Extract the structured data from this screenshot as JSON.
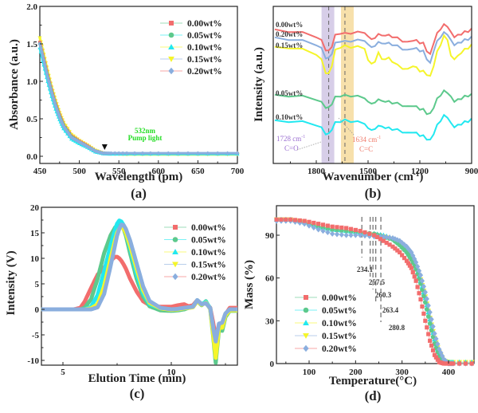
{
  "figure": {
    "panels": [
      "(a)",
      "(b)",
      "(c)",
      "(d)"
    ]
  },
  "series_names": [
    "0.00wt%",
    "0.05wt%",
    "0.10wt%",
    "0.15wt%",
    "0.20wt%"
  ],
  "series_colors": [
    "#f26d6d",
    "#5dc98c",
    "#22e8f0",
    "#f5f52a",
    "#8aaede"
  ],
  "series_markers": [
    "square",
    "circle",
    "triangle-up",
    "triangle-down",
    "diamond"
  ],
  "chart_data": [
    {
      "panel": "(a)",
      "type": "line",
      "xlabel": "Wavelength (pm)",
      "ylabel": "Absorbance (a.u.)",
      "xlim": [
        450,
        700
      ],
      "ylim": [
        0,
        2.0
      ],
      "xticks": [
        450,
        500,
        550,
        600,
        650,
        700
      ],
      "yticks": [
        0.0,
        0.5,
        1.0,
        1.5,
        2.0
      ],
      "ytick_labels": [
        "0.0",
        "0.5",
        "1.0",
        "1.5",
        "2.0"
      ],
      "legend": "top-right",
      "annotation": {
        "text_line1": "532nm",
        "text_line2": "Pump light",
        "x": 532,
        "y": 0.05,
        "color": "#22dd22"
      },
      "x": [
        450,
        455,
        460,
        465,
        470,
        475,
        480,
        490,
        500,
        510,
        520,
        530,
        540,
        560,
        600,
        650,
        700
      ],
      "series": [
        {
          "name": "0.00wt%",
          "values": [
            1.52,
            1.3,
            1.08,
            0.88,
            0.7,
            0.55,
            0.42,
            0.27,
            0.2,
            0.14,
            0.07,
            0.04,
            0.035,
            0.035,
            0.035,
            0.035,
            0.035
          ]
        },
        {
          "name": "0.05wt%",
          "values": [
            1.5,
            1.28,
            1.06,
            0.86,
            0.68,
            0.53,
            0.41,
            0.26,
            0.19,
            0.13,
            0.07,
            0.04,
            0.035,
            0.035,
            0.035,
            0.035,
            0.035
          ]
        },
        {
          "name": "0.10wt%",
          "values": [
            1.45,
            1.22,
            1.0,
            0.8,
            0.63,
            0.49,
            0.37,
            0.23,
            0.17,
            0.12,
            0.06,
            0.035,
            0.03,
            0.03,
            0.03,
            0.03,
            0.03
          ]
        },
        {
          "name": "0.15wt%",
          "values": [
            1.58,
            1.36,
            1.13,
            0.92,
            0.74,
            0.58,
            0.45,
            0.29,
            0.21,
            0.15,
            0.08,
            0.04,
            0.03,
            0.025,
            0.025,
            0.025,
            0.025
          ]
        },
        {
          "name": "0.20wt%",
          "values": [
            1.5,
            1.28,
            1.05,
            0.85,
            0.67,
            0.52,
            0.4,
            0.25,
            0.19,
            0.13,
            0.07,
            0.04,
            0.04,
            0.04,
            0.04,
            0.04,
            0.04
          ]
        }
      ]
    },
    {
      "panel": "(b)",
      "type": "line",
      "xlabel": "Wavenumber (cm-1)",
      "xlabel_main": "Wavenumber (cm",
      "xlabel_sup": "-1",
      "xlabel_end": ")",
      "ylabel": "Intensity (a.u.)",
      "xlim": [
        2040,
        900
      ],
      "xticks": [
        1800,
        1500,
        1200,
        900
      ],
      "yticks": [],
      "legend": "inline labels",
      "bands": [
        {
          "center": 1728,
          "label": "1728 cm-1",
          "sub": "C=O",
          "color": "#b7a6d6"
        },
        {
          "center": 1634,
          "label": "1634 cm-1",
          "sub": "C=C",
          "color": "#f0c766"
        }
      ],
      "band_labels": {
        "co_num": "1728 cm",
        "co_sup": "-1",
        "co_sub": "C=O",
        "cc_num": "1634 cm",
        "cc_sup": "-1",
        "cc_sub": "C=C"
      },
      "x": [
        2040,
        1960,
        1880,
        1800,
        1770,
        1745,
        1728,
        1710,
        1690,
        1660,
        1634,
        1600,
        1560,
        1520,
        1500,
        1480,
        1460,
        1440,
        1420,
        1400,
        1380,
        1360,
        1330,
        1300,
        1270,
        1240,
        1220,
        1200,
        1180,
        1160,
        1140,
        1120,
        1100,
        1080,
        1060,
        1040,
        1020,
        1000,
        980,
        960,
        940,
        920,
        900
      ],
      "series": [
        {
          "name": "0.00wt%",
          "offset": 100,
          "values": [
            0,
            -2,
            -6,
            -14,
            -24,
            -44,
            -48,
            -36,
            -12,
            -6,
            -8,
            -6,
            -5,
            -4,
            -16,
            -18,
            -20,
            -6,
            -14,
            -10,
            -12,
            -14,
            -18,
            -24,
            -28,
            -22,
            -24,
            -28,
            -30,
            -46,
            -56,
            -28,
            -8,
            4,
            12,
            10,
            -6,
            -14,
            -12,
            -8,
            -4,
            -2,
            2
          ]
        },
        {
          "name": "0.20wt%",
          "offset": 90,
          "values": [
            0,
            -2,
            -6,
            -14,
            -24,
            -44,
            -46,
            -34,
            -12,
            -6,
            -8,
            -6,
            -5,
            -4,
            -16,
            -18,
            -20,
            -6,
            -14,
            -10,
            -12,
            -14,
            -18,
            -24,
            -28,
            -22,
            -24,
            -28,
            -30,
            -46,
            -58,
            -28,
            -8,
            4,
            12,
            10,
            -6,
            -14,
            -12,
            -8,
            -4,
            -2,
            2
          ]
        },
        {
          "name": "0.15wt%",
          "offset": 80,
          "values": [
            0,
            1,
            -4,
            -14,
            -28,
            -56,
            -60,
            -40,
            -6,
            2,
            4,
            2,
            2,
            0,
            -30,
            -34,
            -34,
            -8,
            -28,
            -24,
            -24,
            -30,
            -40,
            -46,
            -50,
            -40,
            -46,
            -52,
            -54,
            -60,
            -66,
            -40,
            -10,
            8,
            26,
            20,
            -20,
            -24,
            -20,
            -10,
            -4,
            0,
            6
          ]
        },
        {
          "name": "0.05wt%",
          "offset": 30,
          "values": [
            0,
            0,
            -2,
            -8,
            -16,
            -26,
            -28,
            -18,
            -4,
            0,
            0,
            0,
            -2,
            -4,
            -16,
            -16,
            -18,
            -6,
            -14,
            -12,
            -14,
            -16,
            -18,
            -22,
            -26,
            -22,
            -26,
            -30,
            -32,
            -40,
            -42,
            -26,
            -8,
            2,
            10,
            8,
            -4,
            -12,
            -10,
            -6,
            -2,
            0,
            2
          ]
        },
        {
          "name": "0.10wt%",
          "offset": 0,
          "values": [
            0,
            0,
            -2,
            -8,
            -16,
            -28,
            -30,
            -18,
            -4,
            0,
            2,
            0,
            -2,
            -4,
            -18,
            -18,
            -20,
            -8,
            -14,
            -14,
            -16,
            -18,
            -20,
            -24,
            -28,
            -24,
            -28,
            -32,
            -34,
            -40,
            -44,
            -28,
            -10,
            2,
            12,
            10,
            -6,
            -12,
            -10,
            -6,
            -2,
            0,
            4
          ]
        }
      ]
    },
    {
      "panel": "(c)",
      "type": "line",
      "xlabel": "Elution Time (min)",
      "ylabel": "Intensity (V)",
      "xlim": [
        4.0,
        13.05
      ],
      "ylim": [
        -11,
        20
      ],
      "xticks": [
        5,
        10
      ],
      "yticks": [
        -10,
        -5,
        0,
        5,
        10,
        15,
        20
      ],
      "legend": "top-right",
      "x": [
        4.0,
        5.0,
        5.5,
        5.8,
        6.0,
        6.3,
        6.6,
        6.9,
        7.2,
        7.4,
        7.5,
        7.6,
        7.7,
        7.8,
        7.9,
        8.1,
        8.4,
        8.7,
        9.0,
        9.5,
        10.0,
        10.3,
        10.6,
        10.8,
        11.0,
        11.2,
        11.4,
        11.6,
        11.8,
        11.95,
        12.05,
        12.2,
        12.35,
        12.5,
        12.7,
        13.05
      ],
      "series": [
        {
          "name": "0.00wt%",
          "values": [
            0,
            0,
            0,
            0.3,
            1.5,
            4.2,
            6.8,
            8.2,
            9.5,
            10.3,
            10.3,
            10.0,
            9.5,
            8.8,
            8.0,
            6.0,
            3.5,
            1.6,
            0.8,
            0.5,
            0.5,
            0.8,
            1.0,
            0.6,
            0.8,
            1.8,
            1.0,
            1.2,
            0.3,
            -3.0,
            -5.5,
            -3.0,
            -2.8,
            -1.0,
            0.3,
            0.3
          ]
        },
        {
          "name": "0.05wt%",
          "values": [
            0,
            0,
            0,
            0,
            0.3,
            2.0,
            6.0,
            11.0,
            14.5,
            16.0,
            16.5,
            16.8,
            16.5,
            15.8,
            14.5,
            11.0,
            6.0,
            2.5,
            0.6,
            -0.2,
            -0.3,
            -0.2,
            0,
            0.3,
            0.5,
            1.6,
            0.8,
            1.6,
            0.0,
            -6.0,
            -10.5,
            -4.0,
            -4.2,
            -1.5,
            -0.3,
            -0.3
          ]
        },
        {
          "name": "0.10wt%",
          "values": [
            0,
            0,
            0,
            0,
            0,
            0.5,
            2.8,
            7.5,
            12.5,
            15.5,
            16.8,
            17.4,
            17.2,
            16.5,
            15.2,
            12.0,
            7.0,
            3.2,
            1.0,
            0.2,
            0,
            0,
            0.2,
            0.3,
            0.5,
            1.8,
            1.0,
            1.5,
            0.2,
            -5.0,
            -8.5,
            -3.6,
            -3.4,
            -1.0,
            0,
            0
          ]
        },
        {
          "name": "0.15wt%",
          "values": [
            0,
            0,
            0,
            0,
            0,
            0.2,
            1.0,
            4.5,
            10.0,
            13.5,
            15.0,
            15.8,
            16.1,
            15.8,
            15.0,
            12.5,
            8.0,
            3.8,
            1.3,
            0.2,
            -0.1,
            0,
            0.2,
            0.3,
            0.4,
            1.6,
            0.9,
            1.3,
            0.1,
            -5.5,
            -9.5,
            -3.6,
            -3.6,
            -1.2,
            -0.2,
            -0.2
          ]
        },
        {
          "name": "0.20wt%",
          "values": [
            0,
            0,
            0,
            0,
            0,
            0,
            0.4,
            3.0,
            8.5,
            12.5,
            14.5,
            15.8,
            16.6,
            16.5,
            15.8,
            13.5,
            9.0,
            4.5,
            1.6,
            0.3,
            0,
            0.1,
            0.3,
            0.4,
            0.5,
            1.8,
            1.0,
            1.2,
            0.2,
            -4.0,
            -6.3,
            -2.8,
            -2.6,
            -0.8,
            0,
            0
          ]
        }
      ]
    },
    {
      "panel": "(d)",
      "type": "scatter",
      "xlabel": "Temperature(°C)",
      "ylabel": "Mass (%)",
      "xlim": [
        30,
        450
      ],
      "ylim": [
        0,
        110
      ],
      "xticks": [
        100,
        200,
        300,
        400
      ],
      "yticks": [
        0,
        30,
        60,
        90
      ],
      "legend": "bottom-left",
      "onset_markers": [
        234.1,
        257.5,
        260.3,
        263.4,
        280.8
      ],
      "onset_labels": [
        "234.1",
        "257.5",
        "260.3",
        "263.4",
        "280.8"
      ],
      "x": [
        30,
        60,
        90,
        120,
        150,
        180,
        210,
        240,
        260,
        280,
        295,
        310,
        320,
        330,
        340,
        350,
        360,
        370,
        380,
        390,
        400,
        410,
        450
      ],
      "series": [
        {
          "name": "0.00wt%",
          "values": [
            101,
            101,
            100,
            98,
            96,
            95,
            93,
            90,
            86,
            82,
            78,
            72,
            67,
            58,
            45,
            30,
            16,
            6,
            1,
            0,
            0,
            0,
            0
          ]
        },
        {
          "name": "0.05wt%",
          "values": [
            101,
            101,
            99,
            96,
            94,
            93,
            92,
            91,
            89,
            87,
            83,
            78,
            73,
            66,
            56,
            43,
            28,
            14,
            5,
            1,
            0,
            0,
            0
          ]
        },
        {
          "name": "0.10wt%",
          "values": [
            101,
            101,
            99,
            96,
            94,
            93,
            92,
            91,
            90,
            88,
            84,
            79,
            74,
            67,
            58,
            46,
            31,
            17,
            7,
            2,
            1,
            1,
            1
          ]
        },
        {
          "name": "0.15wt%",
          "values": [
            101,
            101,
            99,
            95,
            93,
            92,
            91,
            90,
            89,
            87,
            84,
            80,
            75,
            68,
            59,
            47,
            32,
            18,
            8,
            2,
            1,
            1,
            1
          ]
        },
        {
          "name": "0.20wt%",
          "values": [
            100,
            100,
            98,
            94,
            91,
            90,
            90,
            89,
            89,
            88,
            86,
            82,
            78,
            71,
            62,
            50,
            36,
            21,
            10,
            3,
            0,
            0,
            0
          ]
        }
      ]
    }
  ]
}
